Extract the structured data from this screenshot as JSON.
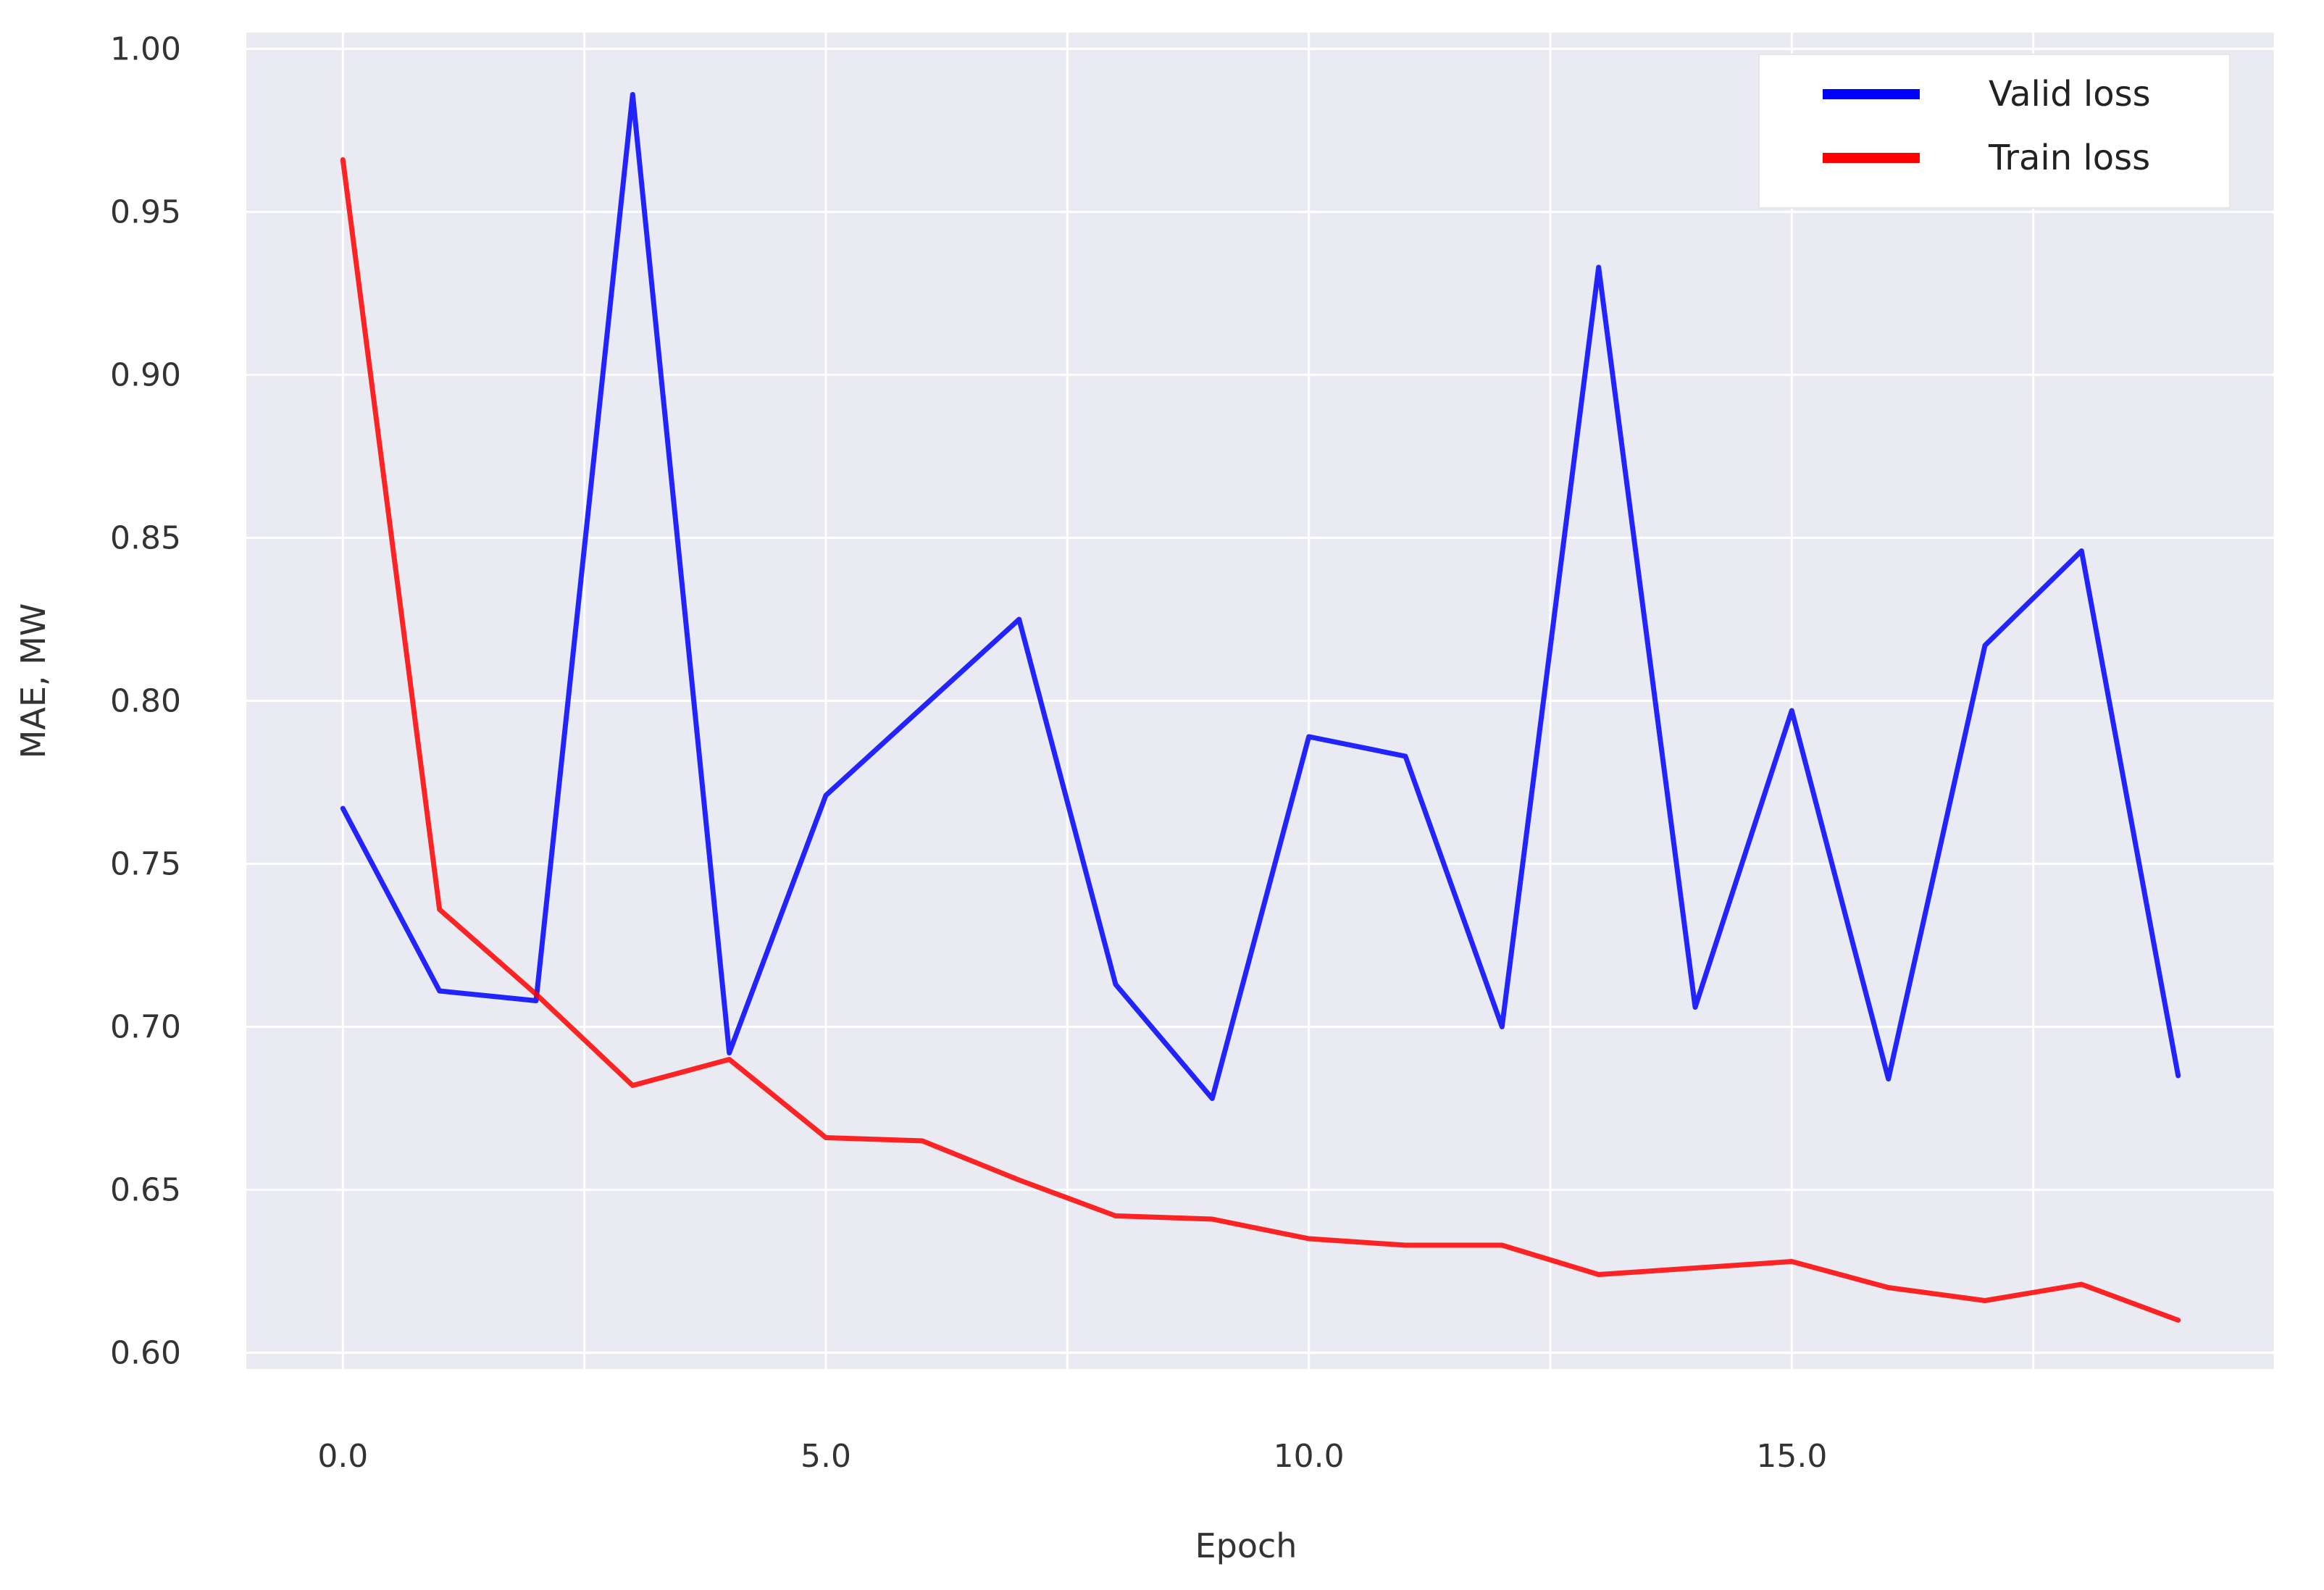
{
  "chart_data": {
    "type": "line",
    "title": "",
    "xlabel": "Epoch",
    "ylabel": "MAE, MW",
    "xlim": [
      -1,
      20
    ],
    "ylim": [
      0.595,
      1.005
    ],
    "x_ticks": [
      0,
      5,
      10,
      15
    ],
    "x_tick_labels": [
      "0.0",
      "5.0",
      "10.0",
      "15.0"
    ],
    "y_ticks": [
      0.6,
      0.65,
      0.7,
      0.75,
      0.8,
      0.85,
      0.9,
      0.95,
      1.0
    ],
    "y_tick_labels": [
      "0.60",
      "0.65",
      "0.70",
      "0.75",
      "0.80",
      "0.85",
      "0.90",
      "0.95",
      "1.00"
    ],
    "x": [
      0,
      1,
      2,
      3,
      4,
      5,
      6,
      7,
      8,
      9,
      10,
      11,
      12,
      13,
      14,
      15,
      16,
      17,
      18,
      19
    ],
    "grid": true,
    "legend_position": "top-right",
    "series": [
      {
        "name": "Valid loss",
        "color": "#0000ff",
        "values": [
          0.767,
          0.711,
          0.708,
          0.986,
          0.692,
          0.771,
          0.798,
          0.825,
          0.713,
          0.678,
          0.789,
          0.783,
          0.7,
          0.933,
          0.706,
          0.797,
          0.684,
          0.817,
          0.846,
          0.685
        ]
      },
      {
        "name": "Train loss",
        "color": "#ff0000",
        "values": [
          0.966,
          0.736,
          0.71,
          0.682,
          0.69,
          0.666,
          0.665,
          0.653,
          0.642,
          0.641,
          0.635,
          0.633,
          0.633,
          0.624,
          0.626,
          0.628,
          0.62,
          0.616,
          0.621,
          0.61
        ]
      }
    ]
  }
}
